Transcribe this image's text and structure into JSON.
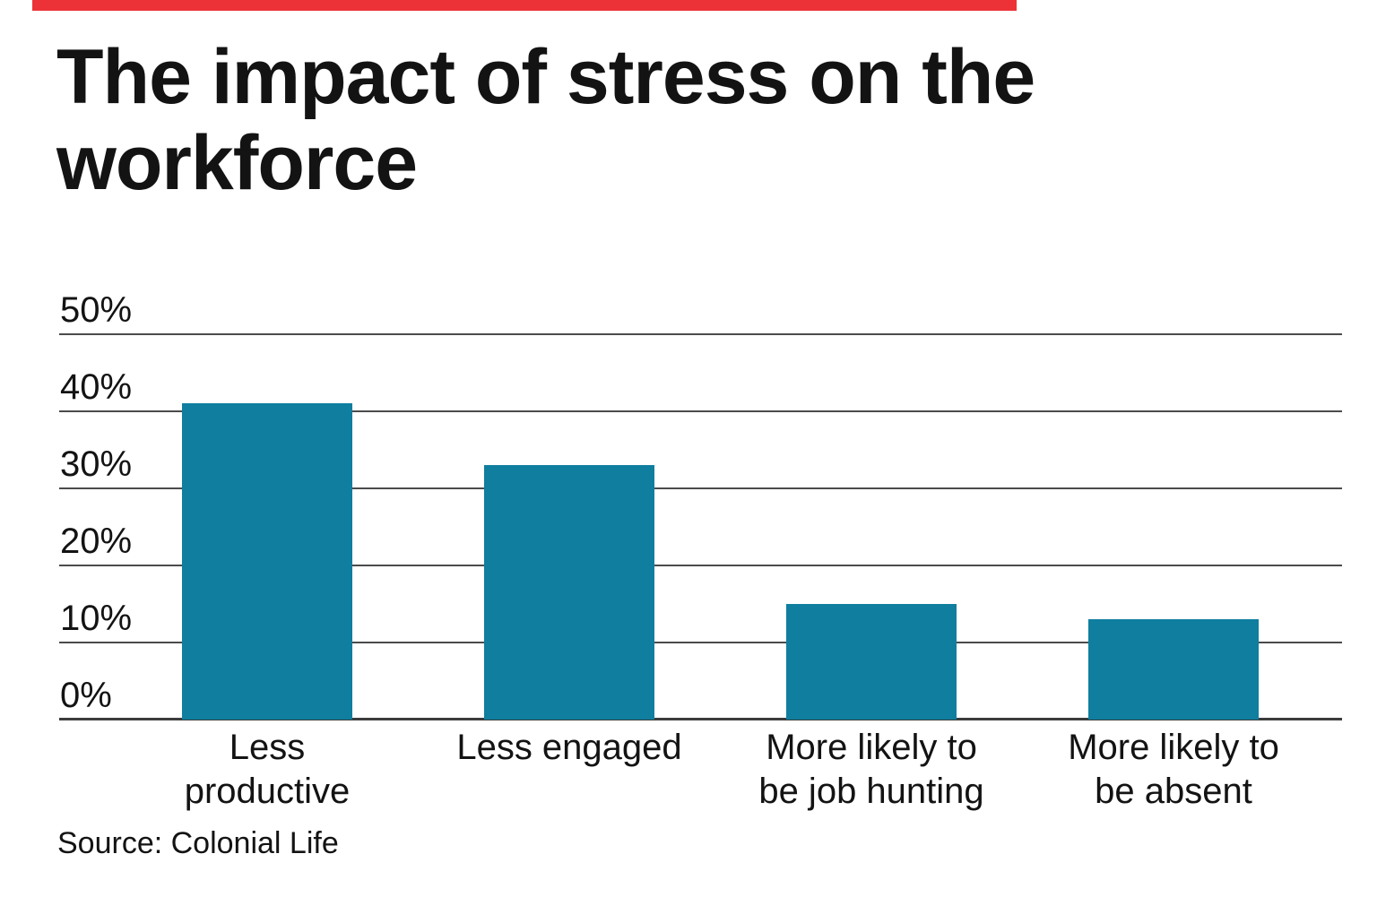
{
  "colors": {
    "accent_bar": "#ed3237",
    "bar": "#0f7e9f",
    "gridline": "#4b4b4b",
    "axis_line": "#3c3c3c",
    "text": "#131313",
    "background": "#ffffff"
  },
  "chart_data": {
    "type": "bar",
    "title": "The impact of stress on the workforce",
    "categories": [
      "Less productive",
      "Less engaged",
      "More likely to be job hunting",
      "More likely to be absent"
    ],
    "values": [
      41,
      33,
      15,
      13
    ],
    "unit": "%",
    "series_color": "#0f7e9f",
    "xlabel": "",
    "ylabel": "",
    "ylim": [
      0,
      50
    ],
    "yticks": [
      0,
      10,
      20,
      30,
      40,
      50
    ],
    "ytick_labels": [
      "0%",
      "10%",
      "20%",
      "30%",
      "40%",
      "50%"
    ],
    "grid": "horizontal",
    "legend": "none",
    "source": "Source: Colonial Life",
    "label_lines": [
      [
        "Less",
        "productive"
      ],
      [
        "Less engaged"
      ],
      [
        "More likely to",
        "be job hunting"
      ],
      [
        "More likely to",
        "be absent"
      ]
    ]
  }
}
